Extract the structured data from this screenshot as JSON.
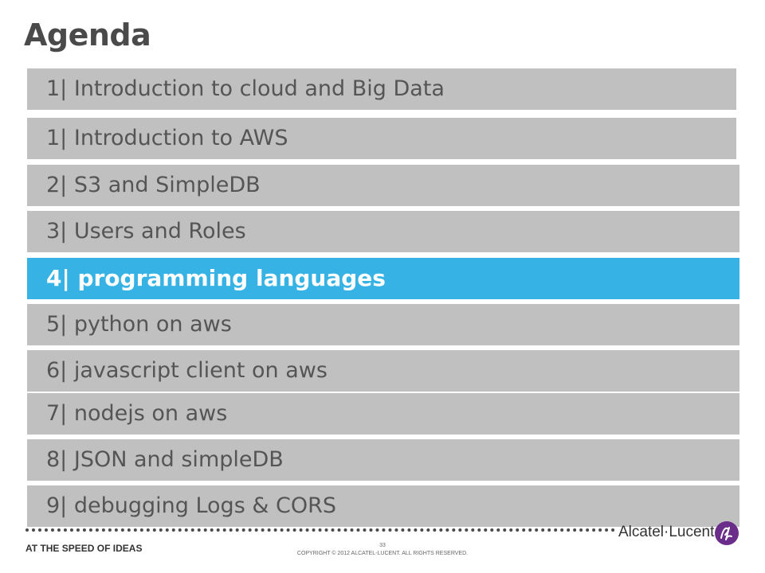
{
  "slide": {
    "title": "Agenda",
    "items": [
      {
        "label": "1| Introduction to cloud and Big Data",
        "active": false
      },
      {
        "label": "1| Introduction to AWS",
        "active": false
      },
      {
        "label": "2| S3 and SimpleDB",
        "active": false
      },
      {
        "label": "3| Users and Roles",
        "active": false
      },
      {
        "label": "4| programming languages",
        "active": true
      },
      {
        "label": "5| python on aws",
        "active": false
      },
      {
        "label": "6| javascript client on aws",
        "active": false
      },
      {
        "label": "7| nodejs on aws",
        "active": false
      },
      {
        "label": "8| JSON and simpleDB",
        "active": false
      },
      {
        "label": "9| debugging Logs & CORS",
        "active": false
      }
    ]
  },
  "footer": {
    "tagline": "AT THE SPEED OF IDEAS",
    "page_number": "33",
    "copyright": "COPYRIGHT © 2012 ALCATEL-LUCENT.  ALL RIGHTS RESERVED.",
    "brand": "Alcatel·Lucent"
  },
  "colors": {
    "active_bar": "#36b2e4",
    "inactive_bar": "#c0c0c0",
    "logo_purple": "#6b2d8a"
  }
}
